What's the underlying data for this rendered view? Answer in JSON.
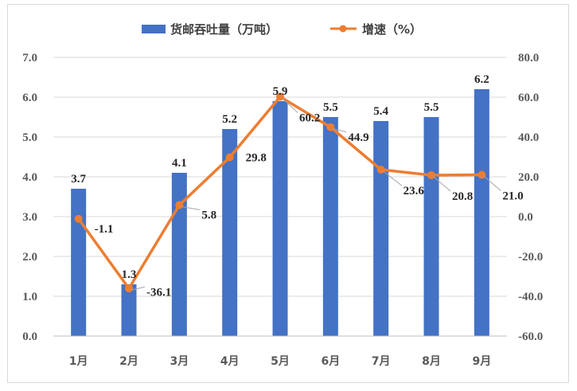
{
  "chart_data": {
    "type": "bar+line",
    "categories": [
      "1月",
      "2月",
      "3月",
      "4月",
      "5月",
      "6月",
      "7月",
      "8月",
      "9月"
    ],
    "series": [
      {
        "name": "货邮吞吐量（万吨）",
        "type": "bar",
        "axis": "left",
        "color": "#4472c4",
        "values": [
          3.7,
          1.3,
          4.1,
          5.2,
          5.9,
          5.5,
          5.4,
          5.5,
          6.2
        ]
      },
      {
        "name": "增速（%）",
        "type": "line",
        "axis": "right",
        "color": "#ed7d31",
        "values": [
          -1.1,
          -36.1,
          5.8,
          29.8,
          60.2,
          44.9,
          23.6,
          20.8,
          21.0
        ]
      }
    ],
    "y_left": {
      "range": [
        0,
        7
      ],
      "ticks": [
        "0.0",
        "1.0",
        "2.0",
        "3.0",
        "4.0",
        "5.0",
        "6.0",
        "7.0"
      ]
    },
    "y_right": {
      "range": [
        -60,
        80
      ],
      "ticks": [
        "-60.0",
        "-40.0",
        "-20.0",
        "0.0",
        "20.0",
        "40.0",
        "60.0",
        "80.0"
      ]
    },
    "grid": true,
    "legend": "top-center"
  }
}
